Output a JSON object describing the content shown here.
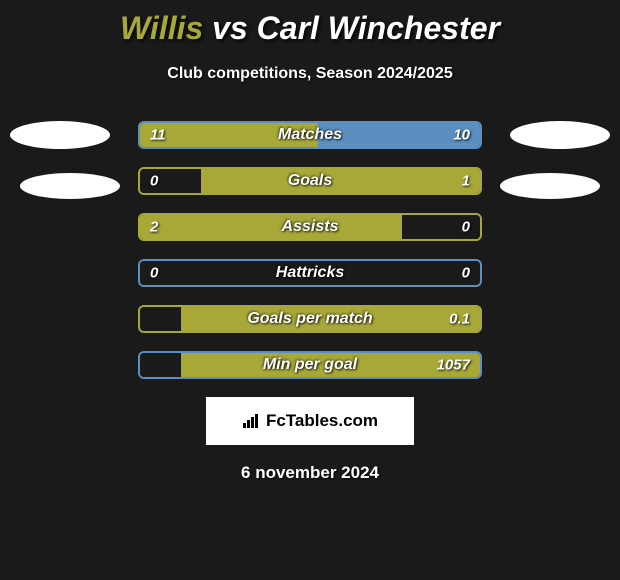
{
  "title": "Willis vs Carl Winchester",
  "subtitle": "Club competitions, Season 2024/2025",
  "date": "6 november 2024",
  "logo_text": "FcTables.com",
  "colors": {
    "background": "#1a1a1a",
    "player1_title": "#a8a838",
    "player2_title": "#ffffff",
    "bar_player1": "#a8a838",
    "bar_player2": "#5b8fbf",
    "bar_empty": "#1a1a1a",
    "text": "#ffffff"
  },
  "title_parts": {
    "player1": "Willis",
    "vs": " vs ",
    "player2": "Carl Winchester"
  },
  "stats": [
    {
      "label": "Matches",
      "left_value": "11",
      "right_value": "10",
      "left_pct": 52.4,
      "right_pct": 47.6,
      "left_color": "#a8a838",
      "right_color": "#5b8fbf",
      "border_color": "#5b8fbf"
    },
    {
      "label": "Goals",
      "left_value": "0",
      "right_value": "1",
      "left_pct": 18,
      "right_pct": 82,
      "left_color": "#1a1a1a",
      "right_color": "#a8a838",
      "border_color": "#a8a838"
    },
    {
      "label": "Assists",
      "left_value": "2",
      "right_value": "0",
      "left_pct": 77,
      "right_pct": 23,
      "left_color": "#a8a838",
      "right_color": "#1a1a1a",
      "border_color": "#a8a838"
    },
    {
      "label": "Hattricks",
      "left_value": "0",
      "right_value": "0",
      "left_pct": 50,
      "right_pct": 50,
      "left_color": "#1a1a1a",
      "right_color": "#1a1a1a",
      "border_color": "#5b8fbf"
    },
    {
      "label": "Goals per match",
      "left_value": "",
      "right_value": "0.1",
      "left_pct": 12,
      "right_pct": 88,
      "left_color": "#1a1a1a",
      "right_color": "#a8a838",
      "border_color": "#a8a838"
    },
    {
      "label": "Min per goal",
      "left_value": "",
      "right_value": "1057",
      "left_pct": 12,
      "right_pct": 88,
      "left_color": "#1a1a1a",
      "right_color": "#a8a838",
      "border_color": "#5b8fbf"
    }
  ]
}
